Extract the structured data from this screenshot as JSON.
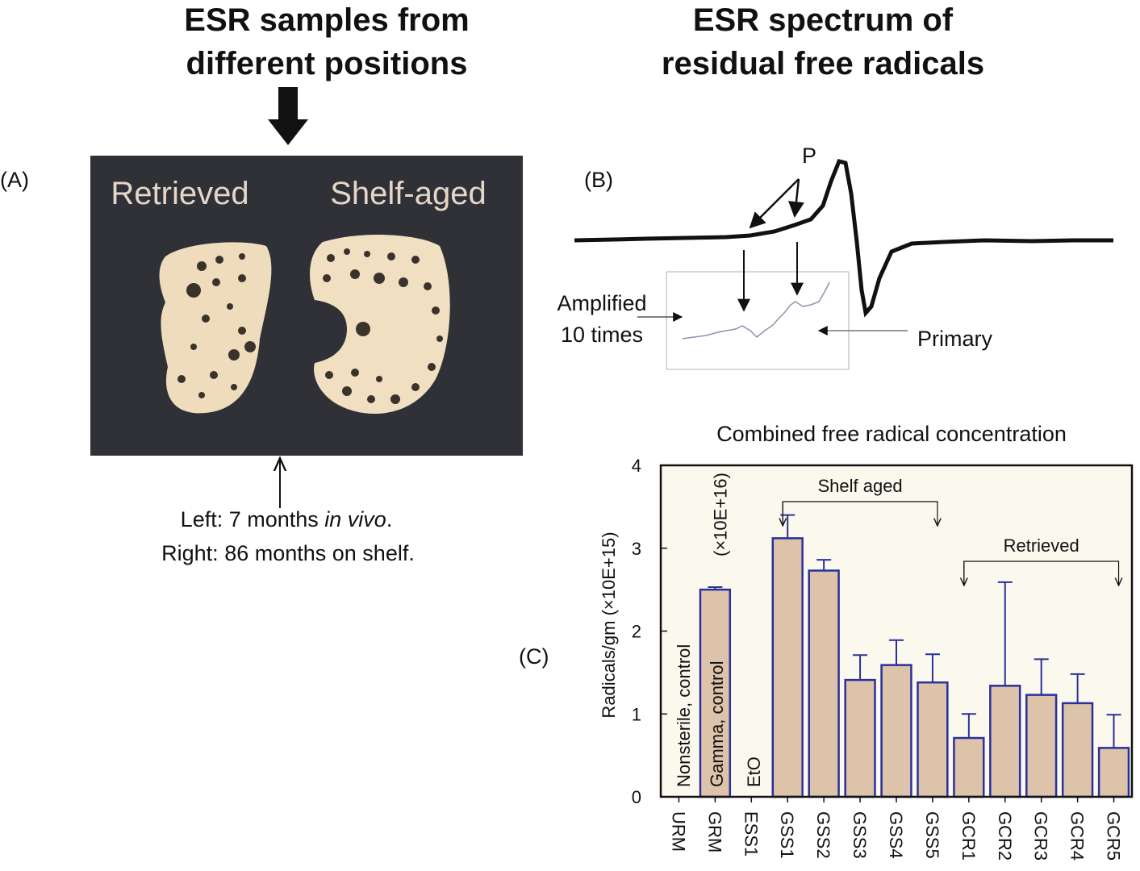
{
  "panel_a": {
    "title": [
      "ESR samples from",
      "different positions"
    ],
    "label": "(A)",
    "photo_labels": [
      "Retrieved",
      "Shelf-aged"
    ],
    "caption": {
      "line1_start": "Left: 7 months ",
      "line1_italic": "in vivo",
      "line1_end": ".",
      "line2": "Right: 86 months on shelf."
    }
  },
  "panel_b": {
    "title": [
      "ESR spectrum of",
      "residual free radicals"
    ],
    "label": "(B)",
    "peak_label": "P",
    "amplified_label": [
      "Amplified",
      "10 times"
    ],
    "primary_label": "Primary"
  },
  "chart_data": {
    "type": "bar",
    "label": "(C)",
    "title": "Combined free radical concentration",
    "y_label": "Radicals/gm (×10E+15)",
    "scale_note": "(×10E+16)",
    "bar_annotations": [
      "Nonsterile, control",
      "Gamma, control",
      "EtO"
    ],
    "bracket_labels": [
      "Shelf aged",
      "Retrieved"
    ],
    "categories": [
      "URM",
      "GRM",
      "ESS1",
      "GSS1",
      "GSS2",
      "GSS3",
      "GSS4",
      "GSS5",
      "GCR1",
      "GCR2",
      "GCR3",
      "GCR4",
      "GCR5"
    ],
    "values": [
      0,
      2.5,
      0,
      3.12,
      2.73,
      1.41,
      1.59,
      1.38,
      0.71,
      1.34,
      1.23,
      1.13,
      0.59
    ],
    "errors": [
      null,
      0.03,
      null,
      0.28,
      0.13,
      0.3,
      0.3,
      0.34,
      0.29,
      1.25,
      0.43,
      0.35,
      0.4
    ],
    "color": "#dcc3aa",
    "edge_color": "#2b2f9c",
    "background": "#fbf9ee",
    "ylim": [
      0,
      4
    ],
    "yticks": [
      0,
      1,
      2,
      3,
      4
    ]
  }
}
